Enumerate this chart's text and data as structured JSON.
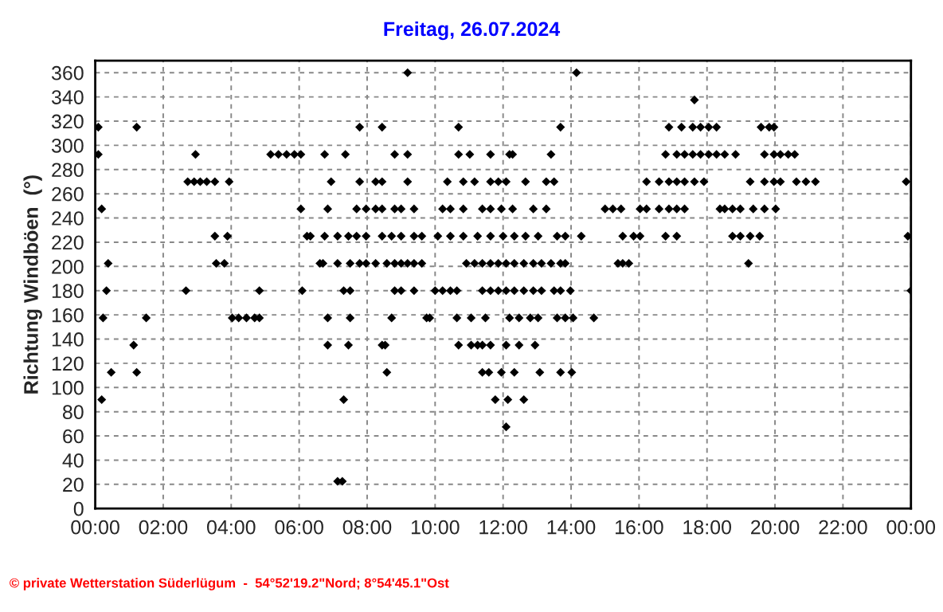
{
  "chart_data": {
    "type": "scatter",
    "title": "Freitag, 26.07.2024",
    "ylabel": "Richtung Windböen  (°)",
    "annotations": [
      "© private Wetterstation Süderlügum  -  54°52'19.2\"Nord; 8°54'45.1\"Ost"
    ],
    "xlim": [
      0,
      24
    ],
    "ylim": [
      0,
      370
    ],
    "xticks": [
      {
        "value": 0,
        "label": "00:00"
      },
      {
        "value": 2,
        "label": "02:00"
      },
      {
        "value": 4,
        "label": "04:00"
      },
      {
        "value": 6,
        "label": "06:00"
      },
      {
        "value": 8,
        "label": "08:00"
      },
      {
        "value": 10,
        "label": "10:00"
      },
      {
        "value": 12,
        "label": "12:00"
      },
      {
        "value": 14,
        "label": "14:00"
      },
      {
        "value": 16,
        "label": "16:00"
      },
      {
        "value": 18,
        "label": "18:00"
      },
      {
        "value": 20,
        "label": "20:00"
      },
      {
        "value": 22,
        "label": "22:00"
      },
      {
        "value": 24,
        "label": "00:00"
      }
    ],
    "yticks": [
      0,
      20,
      40,
      60,
      80,
      100,
      120,
      140,
      160,
      180,
      200,
      220,
      240,
      260,
      280,
      300,
      320,
      340,
      360
    ],
    "grid": true,
    "marker": "diamond",
    "series": [
      {
        "color": "#000000",
        "x": [
          17.63,
          9.19,
          14.16,
          0.09,
          1.22,
          7.78,
          8.44,
          10.69,
          13.69,
          16.88,
          17.25,
          17.58,
          17.81,
          18.05,
          18.28,
          19.59,
          19.83,
          19.97,
          0.09,
          2.95,
          5.16,
          5.39,
          5.63,
          5.86,
          6.05,
          6.75,
          7.36,
          8.81,
          9.19,
          10.69,
          11.02,
          11.63,
          12.19,
          12.28,
          13.41,
          16.78,
          17.11,
          17.34,
          17.58,
          17.81,
          18.05,
          18.28,
          18.52,
          18.84,
          19.69,
          19.97,
          20.16,
          20.39,
          20.58,
          2.72,
          2.91,
          3.09,
          3.28,
          3.52,
          3.94,
          6.94,
          7.78,
          8.25,
          8.44,
          9.19,
          10.36,
          10.83,
          11.16,
          11.63,
          11.86,
          12.09,
          12.66,
          13.27,
          13.5,
          16.22,
          16.59,
          16.88,
          17.11,
          17.34,
          17.63,
          17.91,
          19.27,
          19.69,
          19.97,
          20.16,
          20.63,
          20.91,
          21.19,
          23.86,
          0.19,
          6.05,
          6.84,
          7.69,
          7.97,
          8.25,
          8.44,
          8.81,
          9.0,
          9.38,
          10.22,
          10.45,
          10.83,
          11.39,
          11.63,
          11.95,
          12.28,
          12.89,
          13.27,
          15.0,
          15.23,
          15.47,
          16.03,
          16.22,
          16.59,
          16.88,
          17.11,
          17.34,
          18.38,
          18.52,
          18.75,
          18.98,
          19.36,
          19.69,
          20.02,
          3.52,
          3.89,
          6.23,
          6.33,
          6.75,
          7.13,
          7.45,
          7.69,
          7.97,
          8.44,
          8.72,
          9.0,
          9.38,
          9.61,
          10.08,
          10.45,
          10.83,
          11.25,
          11.63,
          12.0,
          12.33,
          12.66,
          13.03,
          13.59,
          13.83,
          14.3,
          15.52,
          15.84,
          16.03,
          16.78,
          17.11,
          18.75,
          18.98,
          19.27,
          19.55,
          23.91,
          0.38,
          3.56,
          3.8,
          6.61,
          6.7,
          7.13,
          7.5,
          7.78,
          7.97,
          8.25,
          8.58,
          8.81,
          9.0,
          9.19,
          9.38,
          9.61,
          10.92,
          11.16,
          11.39,
          11.63,
          11.86,
          12.09,
          12.33,
          12.61,
          12.89,
          13.13,
          13.41,
          13.69,
          13.83,
          15.38,
          15.52,
          15.7,
          19.22,
          0.33,
          2.67,
          4.83,
          6.09,
          7.31,
          7.5,
          8.81,
          9.0,
          9.38,
          10.0,
          10.22,
          10.45,
          10.64,
          11.39,
          11.63,
          11.86,
          12.09,
          12.33,
          12.61,
          12.89,
          13.13,
          13.5,
          13.69,
          13.98,
          24.0,
          0.23,
          1.5,
          4.03,
          4.22,
          4.45,
          4.69,
          4.83,
          6.84,
          7.5,
          8.72,
          9.75,
          9.84,
          10.64,
          11.06,
          11.48,
          12.19,
          12.47,
          12.8,
          13.03,
          13.59,
          13.83,
          14.06,
          14.67,
          1.13,
          6.84,
          7.45,
          8.44,
          8.53,
          10.69,
          11.06,
          11.25,
          11.39,
          11.63,
          12.09,
          12.47,
          12.94,
          0.47,
          1.22,
          8.58,
          11.39,
          11.58,
          11.95,
          12.33,
          13.08,
          13.69,
          14.02,
          0.19,
          7.31,
          11.77,
          12.14,
          12.61,
          12.09,
          7.13,
          7.27
        ],
        "values": [
          337.5,
          360,
          360,
          315,
          315,
          315,
          315,
          315,
          315,
          315,
          315,
          315,
          315,
          315,
          315,
          315,
          315,
          315,
          292.5,
          292.5,
          292.5,
          292.5,
          292.5,
          292.5,
          292.5,
          292.5,
          292.5,
          292.5,
          292.5,
          292.5,
          292.5,
          292.5,
          292.5,
          292.5,
          292.5,
          292.5,
          292.5,
          292.5,
          292.5,
          292.5,
          292.5,
          292.5,
          292.5,
          292.5,
          292.5,
          292.5,
          292.5,
          292.5,
          292.5,
          270,
          270,
          270,
          270,
          270,
          270,
          270,
          270,
          270,
          270,
          270,
          270,
          270,
          270,
          270,
          270,
          270,
          270,
          270,
          270,
          270,
          270,
          270,
          270,
          270,
          270,
          270,
          270,
          270,
          270,
          270,
          270,
          270,
          270,
          270,
          247.5,
          247.5,
          247.5,
          247.5,
          247.5,
          247.5,
          247.5,
          247.5,
          247.5,
          247.5,
          247.5,
          247.5,
          247.5,
          247.5,
          247.5,
          247.5,
          247.5,
          247.5,
          247.5,
          247.5,
          247.5,
          247.5,
          247.5,
          247.5,
          247.5,
          247.5,
          247.5,
          247.5,
          247.5,
          247.5,
          247.5,
          247.5,
          247.5,
          247.5,
          247.5,
          225,
          225,
          225,
          225,
          225,
          225,
          225,
          225,
          225,
          225,
          225,
          225,
          225,
          225,
          225,
          225,
          225,
          225,
          225,
          225,
          225,
          225,
          225,
          225,
          225,
          225,
          225,
          225,
          225,
          225,
          225,
          225,
          225,
          225,
          225,
          225,
          202.5,
          202.5,
          202.5,
          202.5,
          202.5,
          202.5,
          202.5,
          202.5,
          202.5,
          202.5,
          202.5,
          202.5,
          202.5,
          202.5,
          202.5,
          202.5,
          202.5,
          202.5,
          202.5,
          202.5,
          202.5,
          202.5,
          202.5,
          202.5,
          202.5,
          202.5,
          202.5,
          202.5,
          202.5,
          202.5,
          202.5,
          202.5,
          202.5,
          180,
          180,
          180,
          180,
          180,
          180,
          180,
          180,
          180,
          180,
          180,
          180,
          180,
          180,
          180,
          180,
          180,
          180,
          180,
          180,
          180,
          180,
          180,
          180,
          180,
          157.5,
          157.5,
          157.5,
          157.5,
          157.5,
          157.5,
          157.5,
          157.5,
          157.5,
          157.5,
          157.5,
          157.5,
          157.5,
          157.5,
          157.5,
          157.5,
          157.5,
          157.5,
          157.5,
          157.5,
          157.5,
          157.5,
          157.5,
          135,
          135,
          135,
          135,
          135,
          135,
          135,
          135,
          135,
          135,
          135,
          135,
          135,
          112.5,
          112.5,
          112.5,
          112.5,
          112.5,
          112.5,
          112.5,
          112.5,
          112.5,
          112.5,
          90,
          90,
          90,
          90,
          90,
          67.5,
          22.5,
          22.5
        ]
      }
    ]
  }
}
